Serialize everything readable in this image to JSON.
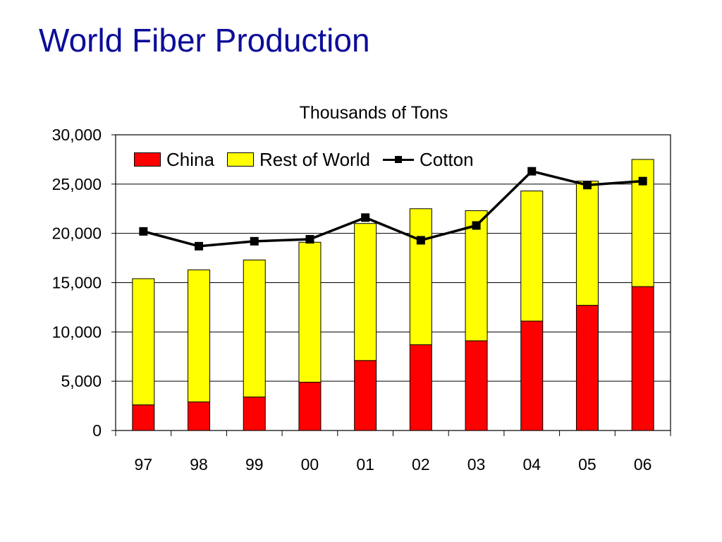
{
  "title": "World Fiber Production",
  "colors": {
    "title": "#0c0c9a",
    "china": "#ff0000",
    "rest_of_world": "#ffff00",
    "cotton": "#000000"
  },
  "chart_data": {
    "type": "bar",
    "stacked": true,
    "title": "Thousands of Tons",
    "categories": [
      "97",
      "98",
      "99",
      "00",
      "01",
      "02",
      "03",
      "04",
      "05",
      "06"
    ],
    "series": [
      {
        "name": "China",
        "type": "bar",
        "color": "#ff0000",
        "values": [
          2600,
          2900,
          3400,
          4900,
          7100,
          8700,
          9100,
          11100,
          12700,
          14600
        ]
      },
      {
        "name": "Rest of World",
        "type": "bar",
        "color": "#ffff00",
        "values": [
          12800,
          13400,
          13900,
          14200,
          13900,
          13800,
          13200,
          13200,
          12600,
          12900
        ]
      },
      {
        "name": "Cotton",
        "type": "line",
        "color": "#000000",
        "values": [
          20200,
          18700,
          19200,
          19400,
          21600,
          19300,
          20800,
          26300,
          24900,
          25300
        ]
      }
    ],
    "yticks": [
      "0",
      "5,000",
      "10,000",
      "15,000",
      "20,000",
      "25,000",
      "30,000"
    ],
    "ylim": [
      0,
      30000
    ],
    "grid": true,
    "legend_position": "top-left"
  }
}
